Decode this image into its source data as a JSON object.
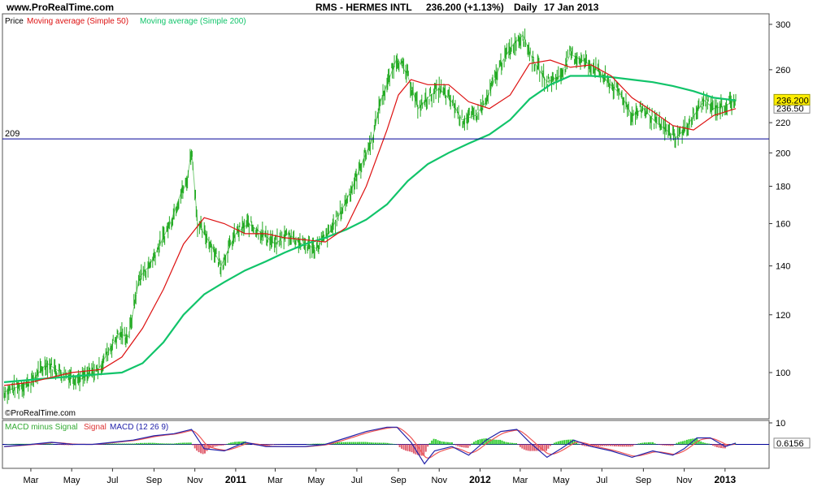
{
  "header": {
    "site": "www.ProRealTime.com",
    "instrument": "RMS - HERMES INTL",
    "last_price": "236.200 (+1.13%)",
    "period": "Daily",
    "date": "17 Jan 2013"
  },
  "watermark": "©ProRealTime.com",
  "colors": {
    "price": "#22aa22",
    "ma50": "#dd1111",
    "ma200": "#11c46a",
    "hline": "#000099",
    "macd": "#2222aa",
    "signal": "#ee5555",
    "hist": "#33cc33",
    "hist_neg": "#e06070",
    "tag": "#ffee00"
  },
  "chart_data": [
    {
      "type": "line",
      "legend": [
        "Price",
        "Moving average (Simple 50)",
        "Moving average (Simple 200)"
      ],
      "yscale": "log",
      "ylim": [
        90,
        300
      ],
      "yticks": [
        "100",
        "120",
        "140",
        "160",
        "180",
        "200",
        "220",
        "260",
        "300"
      ],
      "ytick_values": [
        100,
        120,
        140,
        160,
        180,
        200,
        220,
        260,
        300
      ],
      "x_labels": [
        "Mar",
        "May",
        "Jul",
        "Sep",
        "Nov",
        "2011",
        "Mar",
        "May",
        "Jul",
        "Sep",
        "Nov",
        "2012",
        "Mar",
        "May",
        "Jul",
        "Sep",
        "Nov",
        "2013"
      ],
      "xlim": [
        "2010-01-20",
        "2013-01-17"
      ],
      "horizontal_line": {
        "label": "209",
        "value": 209
      },
      "current_value_label": "236.200",
      "secondary_value_label": "236.50",
      "series": [
        {
          "name": "Price",
          "points": [
            [
              "2010-01-20",
              94
            ],
            [
              "2010-02-01",
              95
            ],
            [
              "2010-03-01",
              97
            ],
            [
              "2010-03-25",
              103
            ],
            [
              "2010-04-15",
              100
            ],
            [
              "2010-05-15",
              98
            ],
            [
              "2010-06-10",
              101
            ],
            [
              "2010-06-25",
              107
            ],
            [
              "2010-07-10",
              113
            ],
            [
              "2010-07-25",
              112
            ],
            [
              "2010-08-10",
              135
            ],
            [
              "2010-08-25",
              140
            ],
            [
              "2010-09-10",
              150
            ],
            [
              "2010-09-25",
              160
            ],
            [
              "2010-10-10",
              175
            ],
            [
              "2010-10-20",
              182
            ],
            [
              "2010-10-27",
              202
            ],
            [
              "2010-11-05",
              160
            ],
            [
              "2010-11-25",
              150
            ],
            [
              "2010-12-10",
              140
            ],
            [
              "2011-01-01",
              155
            ],
            [
              "2011-01-20",
              160
            ],
            [
              "2011-02-10",
              155
            ],
            [
              "2011-03-01",
              150
            ],
            [
              "2011-03-20",
              155
            ],
            [
              "2011-04-10",
              150
            ],
            [
              "2011-05-01",
              148
            ],
            [
              "2011-05-20",
              155
            ],
            [
              "2011-06-10",
              168
            ],
            [
              "2011-06-25",
              180
            ],
            [
              "2011-07-10",
              195
            ],
            [
              "2011-07-25",
              210
            ],
            [
              "2011-08-05",
              235
            ],
            [
              "2011-08-15",
              248
            ],
            [
              "2011-08-30",
              270
            ],
            [
              "2011-09-15",
              255
            ],
            [
              "2011-10-01",
              230
            ],
            [
              "2011-10-15",
              238
            ],
            [
              "2011-11-01",
              245
            ],
            [
              "2011-11-20",
              235
            ],
            [
              "2011-12-05",
              222
            ],
            [
              "2011-12-25",
              225
            ],
            [
              "2012-01-10",
              235
            ],
            [
              "2012-02-01",
              265
            ],
            [
              "2012-02-20",
              282
            ],
            [
              "2012-03-05",
              290
            ],
            [
              "2012-03-20",
              268
            ],
            [
              "2012-04-10",
              250
            ],
            [
              "2012-04-30",
              255
            ],
            [
              "2012-05-15",
              273
            ],
            [
              "2012-06-01",
              268
            ],
            [
              "2012-06-20",
              262
            ],
            [
              "2012-07-10",
              250
            ],
            [
              "2012-07-30",
              240
            ],
            [
              "2012-08-15",
              225
            ],
            [
              "2012-09-01",
              230
            ],
            [
              "2012-09-20",
              220
            ],
            [
              "2012-10-05",
              215
            ],
            [
              "2012-10-20",
              210
            ],
            [
              "2012-11-01",
              215
            ],
            [
              "2012-11-20",
              228
            ],
            [
              "2012-12-01",
              236
            ],
            [
              "2012-12-15",
              230
            ],
            [
              "2013-01-01",
              232
            ],
            [
              "2013-01-17",
              236.2
            ]
          ]
        },
        {
          "name": "Moving average (Simple 50)",
          "points": [
            [
              "2010-01-20",
              96
            ],
            [
              "2010-03-01",
              97
            ],
            [
              "2010-05-01",
              100
            ],
            [
              "2010-06-15",
              101
            ],
            [
              "2010-07-15",
              105
            ],
            [
              "2010-08-15",
              115
            ],
            [
              "2010-09-15",
              130
            ],
            [
              "2010-10-15",
              150
            ],
            [
              "2010-11-15",
              163
            ],
            [
              "2010-12-15",
              160
            ],
            [
              "2011-01-15",
              155
            ],
            [
              "2011-02-15",
              155
            ],
            [
              "2011-03-15",
              153
            ],
            [
              "2011-04-15",
              152
            ],
            [
              "2011-05-15",
              151
            ],
            [
              "2011-06-15",
              158
            ],
            [
              "2011-07-15",
              180
            ],
            [
              "2011-08-15",
              215
            ],
            [
              "2011-09-01",
              240
            ],
            [
              "2011-09-20",
              252
            ],
            [
              "2011-10-15",
              248
            ],
            [
              "2011-11-15",
              248
            ],
            [
              "2011-12-15",
              235
            ],
            [
              "2012-01-15",
              230
            ],
            [
              "2012-02-15",
              240
            ],
            [
              "2012-03-15",
              265
            ],
            [
              "2012-04-15",
              268
            ],
            [
              "2012-05-15",
              262
            ],
            [
              "2012-06-15",
              264
            ],
            [
              "2012-07-15",
              255
            ],
            [
              "2012-08-15",
              238
            ],
            [
              "2012-09-15",
              228
            ],
            [
              "2012-10-15",
              218
            ],
            [
              "2012-11-15",
              215
            ],
            [
              "2012-12-15",
              225
            ],
            [
              "2013-01-17",
              230
            ]
          ]
        },
        {
          "name": "Moving average (Simple 200)",
          "points": [
            [
              "2010-01-20",
              97
            ],
            [
              "2010-03-15",
              98
            ],
            [
              "2010-05-15",
              99
            ],
            [
              "2010-07-15",
              100
            ],
            [
              "2010-08-15",
              103
            ],
            [
              "2010-09-15",
              110
            ],
            [
              "2010-10-15",
              120
            ],
            [
              "2010-11-15",
              128
            ],
            [
              "2010-12-15",
              133
            ],
            [
              "2011-01-15",
              138
            ],
            [
              "2011-02-15",
              142
            ],
            [
              "2011-03-15",
              146
            ],
            [
              "2011-04-15",
              150
            ],
            [
              "2011-05-15",
              153
            ],
            [
              "2011-06-15",
              157
            ],
            [
              "2011-07-15",
              162
            ],
            [
              "2011-08-15",
              170
            ],
            [
              "2011-09-15",
              183
            ],
            [
              "2011-10-15",
              193
            ],
            [
              "2011-11-15",
              200
            ],
            [
              "2011-12-15",
              206
            ],
            [
              "2012-01-15",
              212
            ],
            [
              "2012-02-15",
              222
            ],
            [
              "2012-03-15",
              237
            ],
            [
              "2012-04-15",
              248
            ],
            [
              "2012-05-15",
              255
            ],
            [
              "2012-06-15",
              255
            ],
            [
              "2012-07-15",
              254
            ],
            [
              "2012-08-15",
              252
            ],
            [
              "2012-09-15",
              250
            ],
            [
              "2012-10-15",
              247
            ],
            [
              "2012-11-15",
              243
            ],
            [
              "2012-12-15",
              238
            ],
            [
              "2013-01-17",
              236
            ]
          ]
        }
      ]
    },
    {
      "type": "line",
      "legend": [
        "MACD minus Signal",
        "Signal",
        "MACD (12 26 9)"
      ],
      "ylim": [
        -10,
        10
      ],
      "yticks": [
        "10"
      ],
      "ytick_values": [
        10
      ],
      "zero_line": 0,
      "current_value_label": "0.6156",
      "series": [
        {
          "name": "MACD (12 26 9)",
          "points": [
            [
              "2010-01-20",
              -1
            ],
            [
              "2010-03-01",
              0
            ],
            [
              "2010-04-01",
              1
            ],
            [
              "2010-05-01",
              0
            ],
            [
              "2010-06-01",
              0
            ],
            [
              "2010-07-01",
              1
            ],
            [
              "2010-08-01",
              2
            ],
            [
              "2010-09-01",
              4
            ],
            [
              "2010-10-01",
              5
            ],
            [
              "2010-10-27",
              7
            ],
            [
              "2010-11-15",
              -2
            ],
            [
              "2010-12-15",
              -3
            ],
            [
              "2011-01-15",
              1
            ],
            [
              "2011-02-15",
              -1
            ],
            [
              "2011-03-15",
              -1
            ],
            [
              "2011-04-15",
              -1
            ],
            [
              "2011-05-15",
              0
            ],
            [
              "2011-06-15",
              3
            ],
            [
              "2011-07-15",
              6
            ],
            [
              "2011-08-15",
              8
            ],
            [
              "2011-08-30",
              8
            ],
            [
              "2011-09-20",
              1
            ],
            [
              "2011-10-10",
              -9
            ],
            [
              "2011-10-25",
              -3
            ],
            [
              "2011-11-20",
              -1
            ],
            [
              "2011-12-15",
              -5
            ],
            [
              "2012-01-10",
              2
            ],
            [
              "2012-02-01",
              6
            ],
            [
              "2012-02-25",
              7
            ],
            [
              "2012-03-15",
              1
            ],
            [
              "2012-04-10",
              -6
            ],
            [
              "2012-05-01",
              -2
            ],
            [
              "2012-05-20",
              2
            ],
            [
              "2012-06-15",
              -1
            ],
            [
              "2012-07-15",
              -3
            ],
            [
              "2012-08-15",
              -6
            ],
            [
              "2012-09-15",
              -3
            ],
            [
              "2012-10-15",
              -5
            ],
            [
              "2012-11-01",
              -2
            ],
            [
              "2012-11-20",
              3
            ],
            [
              "2012-12-10",
              3
            ],
            [
              "2013-01-01",
              -1
            ],
            [
              "2013-01-17",
              0.6
            ]
          ]
        }
      ]
    }
  ]
}
